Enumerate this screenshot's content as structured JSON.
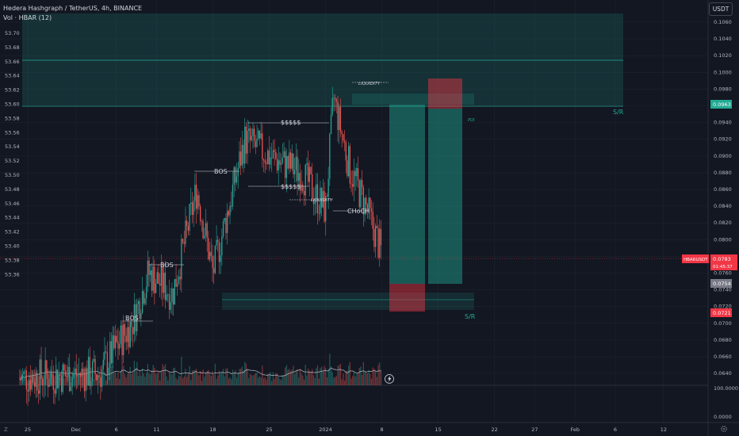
{
  "header": {
    "symbol_line": "Hedera Hashgraph / TetherUS, 4h, BINANCE",
    "indicator_line": "Vol · HBAR (12)",
    "currency_button": "USDT"
  },
  "left_axis": {
    "ticks": [
      "53.70",
      "53.68",
      "53.66",
      "53.64",
      "53.62",
      "53.60",
      "53.58",
      "53.56",
      "53.54",
      "53.52",
      "53.50",
      "53.48",
      "53.46",
      "53.44",
      "53.42",
      "53.40",
      "53.38",
      "53.36"
    ]
  },
  "right_axis": {
    "ticks": [
      "0.1060",
      "0.1040",
      "0.1020",
      "0.1000",
      "0.0980",
      "0.0960",
      "0.0940",
      "0.0920",
      "0.0900",
      "0.0880",
      "0.0860",
      "0.0840",
      "0.0820",
      "0.0800",
      "0.0780",
      "0.0760",
      "0.0740",
      "0.0720",
      "0.0700",
      "0.0680",
      "0.0660",
      "0.0640"
    ],
    "volume_ticks": [
      "100.0000",
      "0.0000"
    ],
    "tags": {
      "target": "0.0963",
      "symbol": "HBARUSDT",
      "last_price": "0.0783",
      "countdown": "01:45:37",
      "entry": "0.0754",
      "stop": "0.0721"
    },
    "tag_colors": {
      "target": "#22ab94",
      "last_price": "#f23645",
      "stop": "#f23645",
      "entry": "#787b86"
    }
  },
  "time_axis": {
    "ticks": [
      "25",
      "Dec",
      "6",
      "11",
      "18",
      "25",
      "2024",
      "8",
      "15",
      "22",
      "27",
      "Feb",
      "6",
      "12"
    ]
  },
  "annotations": {
    "bos_1": "BOS",
    "bos_2": "BOS",
    "bos_3": "BOS",
    "dollars_top": "$$$$$",
    "dollars_bottom": "$$$$$",
    "liquidity_top": "LIQUIDITY",
    "liquidity_mid": "LIQUIDITY",
    "choch": "CHoCH",
    "poi": "POI",
    "sr_top": "S/R",
    "sr_bottom": "S/R"
  },
  "colors": {
    "background": "#131722",
    "bull": "#26a69a",
    "bear": "#ef5350",
    "zone_teal": "#22ab94",
    "zone_red": "#f23645"
  },
  "icons": {
    "replay": "lightning-icon",
    "settings": "gear-icon",
    "log_scale": "z-icon"
  },
  "chart_data": {
    "type": "candlestick",
    "title": "Hedera Hashgraph / TetherUS, 4h, BINANCE",
    "ylim": [
      0.063,
      0.107
    ],
    "waypoints": [
      {
        "date": "2023-11-24",
        "price": 0.0635
      },
      {
        "date": "2023-12-04",
        "price": 0.064
      },
      {
        "date": "2023-12-06",
        "price": 0.0672
      },
      {
        "date": "2023-12-08",
        "price": 0.07
      },
      {
        "date": "2023-12-10",
        "price": 0.076
      },
      {
        "date": "2023-12-13",
        "price": 0.0735
      },
      {
        "date": "2023-12-16",
        "price": 0.086
      },
      {
        "date": "2023-12-18",
        "price": 0.076
      },
      {
        "date": "2023-12-19",
        "price": 0.08
      },
      {
        "date": "2023-12-22",
        "price": 0.092
      },
      {
        "date": "2023-12-25",
        "price": 0.09
      },
      {
        "date": "2023-12-29",
        "price": 0.088
      },
      {
        "date": "2024-01-01",
        "price": 0.0835
      },
      {
        "date": "2024-01-02",
        "price": 0.097
      },
      {
        "date": "2024-01-04",
        "price": 0.0885
      },
      {
        "date": "2024-01-06",
        "price": 0.084
      },
      {
        "date": "2024-01-08",
        "price": 0.0783
      }
    ],
    "trade": {
      "entry": 0.0754,
      "target": 0.0963,
      "stop": 0.0721
    }
  }
}
